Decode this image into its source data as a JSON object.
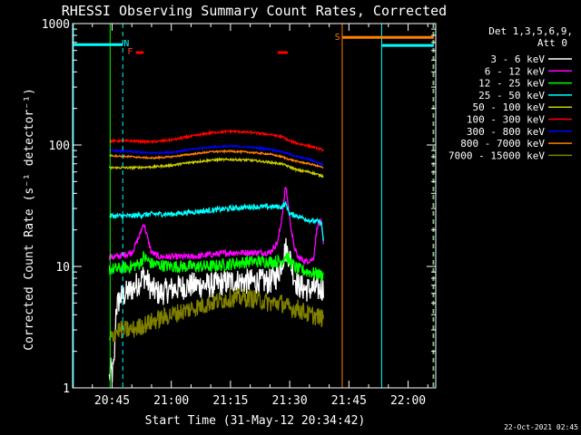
{
  "chart_data": {
    "type": "line",
    "title": "RHESSI Observing Summary Count Rates, Corrected",
    "xlabel": "Start Time (31-May-12 20:34:42)",
    "ylabel": "Corrected Count Rate (s⁻¹ detector⁻¹)",
    "y_scale": "log",
    "ylim": [
      1,
      1000
    ],
    "xlim_minutes_after_2030": [
      5.0,
      97.0
    ],
    "x_ticks": [
      {
        "label": "20:45",
        "minutes": 15
      },
      {
        "label": "21:00",
        "minutes": 30
      },
      {
        "label": "21:15",
        "minutes": 45
      },
      {
        "label": "21:30",
        "minutes": 60
      },
      {
        "label": "21:45",
        "minutes": 75
      },
      {
        "label": "22:00",
        "minutes": 90
      }
    ],
    "y_ticks": [
      {
        "label": "1",
        "value": 1
      },
      {
        "label": "10",
        "value": 10
      },
      {
        "label": "100",
        "value": 100
      },
      {
        "label": "1000",
        "value": 1000
      }
    ],
    "legend": {
      "placement": "right",
      "header": [
        "Det 1,3,5,6,9,",
        "Att 0"
      ],
      "entries": [
        {
          "label": "3 - 6 keV",
          "color": "#ffffff"
        },
        {
          "label": "6 - 12 keV",
          "color": "#ff00ff"
        },
        {
          "label": "12 - 25 keV",
          "color": "#00ff00"
        },
        {
          "label": "25 - 50 keV",
          "color": "#00ffff"
        },
        {
          "label": "50 - 100 keV",
          "color": "#cccc00"
        },
        {
          "label": "100 - 300 keV",
          "color": "#ff0000"
        },
        {
          "label": "300 - 800 keV",
          "color": "#0000ff"
        },
        {
          "label": "800 - 7000 keV",
          "color": "#ff8000"
        },
        {
          "label": "7000 - 15000 keV",
          "color": "#808000"
        }
      ]
    },
    "series": [
      {
        "name": "3 - 6 keV",
        "color": "#ffffff",
        "noise": 0.25,
        "x": [
          14.3,
          14.6,
          15.0,
          15.5,
          16.0,
          17,
          20,
          22,
          23,
          24,
          25,
          27,
          30,
          35,
          40,
          45,
          50,
          55,
          57,
          59,
          60,
          61,
          62,
          64,
          66,
          68,
          68.6
        ],
        "y": [
          1.2,
          1.4,
          1.3,
          1.5,
          4.5,
          5.5,
          6.5,
          7.5,
          8.5,
          7.5,
          6.5,
          6.0,
          6.5,
          7.0,
          7.0,
          7.5,
          7.5,
          7.5,
          8.5,
          14,
          12,
          8.5,
          7.0,
          6.5,
          6.5,
          6.5,
          6.5
        ]
      },
      {
        "name": "6 - 12 keV",
        "color": "#ff00ff",
        "noise": 0.06,
        "x": [
          14.3,
          16,
          20,
          22,
          23,
          24,
          25,
          27,
          30,
          35,
          40,
          45,
          50,
          55,
          57,
          58,
          59,
          60,
          61,
          62,
          64,
          66,
          67,
          68,
          68.6
        ],
        "y": [
          12,
          12,
          13,
          18,
          23,
          17,
          13,
          12,
          12,
          12,
          12.5,
          13,
          13,
          13,
          16,
          25,
          47,
          25,
          15,
          12,
          11,
          11.5,
          22,
          23,
          14
        ]
      },
      {
        "name": "12 - 25 keV",
        "color": "#00ff00",
        "noise": 0.12,
        "x": [
          14.3,
          16,
          20,
          22,
          23,
          25,
          30,
          35,
          40,
          45,
          50,
          55,
          58,
          59,
          60,
          62,
          65,
          68,
          68.6
        ],
        "y": [
          9.5,
          9.5,
          10,
          10.5,
          12,
          10.5,
          10,
          10,
          10,
          10.5,
          11,
          11,
          11,
          12.5,
          11,
          9.5,
          9,
          8.5,
          8.5
        ]
      },
      {
        "name": "25 - 50 keV",
        "color": "#00ffff",
        "noise": 0.05,
        "x": [
          14.3,
          20,
          25,
          30,
          35,
          40,
          45,
          50,
          55,
          58,
          59,
          60,
          62,
          65,
          68,
          68.6
        ],
        "y": [
          26,
          26,
          27,
          27,
          28,
          29,
          30,
          31,
          31,
          31,
          33,
          27,
          26,
          24,
          23,
          16
        ]
      },
      {
        "name": "50 - 100 keV",
        "color": "#cccc00",
        "noise": 0.02,
        "x": [
          14.3,
          20,
          25,
          30,
          35,
          40,
          45,
          50,
          55,
          58,
          60,
          62,
          65,
          68,
          68.6
        ],
        "y": [
          65,
          65,
          66,
          68,
          72,
          75,
          76,
          75,
          72,
          70,
          66,
          62,
          60,
          56,
          55
        ]
      },
      {
        "name": "100 - 300 keV",
        "color": "#ff0000",
        "noise": 0.02,
        "x": [
          14.3,
          20,
          25,
          30,
          35,
          40,
          45,
          50,
          55,
          58,
          60,
          62,
          65,
          68,
          68.6
        ],
        "y": [
          108,
          108,
          106,
          110,
          118,
          126,
          130,
          127,
          122,
          117,
          108,
          103,
          98,
          92,
          90
        ]
      },
      {
        "name": "300 - 800 keV",
        "color": "#0000ff",
        "noise": 0.015,
        "x": [
          14.3,
          20,
          25,
          30,
          35,
          40,
          45,
          50,
          55,
          58,
          60,
          62,
          65,
          68,
          68.6
        ],
        "y": [
          90,
          88,
          86,
          87,
          92,
          96,
          98,
          96,
          92,
          88,
          84,
          80,
          76,
          70,
          68
        ]
      },
      {
        "name": "800 - 7000 keV",
        "color": "#ff8000",
        "noise": 0.015,
        "x": [
          14.3,
          20,
          25,
          30,
          35,
          40,
          45,
          50,
          55,
          58,
          60,
          62,
          65,
          68,
          68.6
        ],
        "y": [
          82,
          80,
          78,
          80,
          84,
          88,
          89,
          87,
          84,
          80,
          76,
          73,
          70,
          66,
          64
        ]
      },
      {
        "name": "7000 - 15000 keV",
        "color": "#808000",
        "noise": 0.18,
        "x": [
          14.3,
          15.5,
          16.5,
          20,
          25,
          30,
          35,
          40,
          45,
          50,
          55,
          58,
          60,
          62,
          65,
          68,
          68.6
        ],
        "y": [
          2.4,
          2.8,
          3.0,
          3.0,
          3.5,
          4.0,
          4.5,
          5.0,
          5.5,
          5.5,
          5.0,
          5.0,
          4.5,
          4.5,
          4.0,
          3.8,
          3.5
        ]
      }
    ],
    "annotations": {
      "flags": [
        {
          "label": "N",
          "minutes": 17.7,
          "color": "#00ffff"
        },
        {
          "label": "F",
          "minutes": 20.5,
          "color": "#ff4040"
        },
        {
          "label": "S",
          "minutes": 73.5,
          "color": "#ff8000"
        }
      ],
      "flare_bars": [
        {
          "start": 21.0,
          "end": 23.0,
          "color": "#ff0000"
        },
        {
          "start": 57.0,
          "end": 59.5,
          "color": "#ff0000"
        }
      ],
      "vertical_lines": [
        {
          "minutes": 5.2,
          "color": "#00ffff",
          "style": "solid"
        },
        {
          "minutes": 14.5,
          "color": "#00ff00",
          "style": "solid"
        },
        {
          "minutes": 17.7,
          "color": "#00ffff",
          "style": "dashed"
        },
        {
          "minutes": 73.3,
          "color": "#ff8000",
          "style": "solid"
        },
        {
          "minutes": 83.3,
          "color": "#00ffff",
          "style": "solid"
        },
        {
          "minutes": 96.3,
          "color": "#ff8000",
          "style": "dashed"
        },
        {
          "minutes": 96.5,
          "color": "#00ffff",
          "style": "dashed"
        }
      ],
      "top_bars": [
        {
          "start": 5.0,
          "end": 17.7,
          "color": "#00ffff",
          "value": 670
        },
        {
          "start": 73.4,
          "end": 96.5,
          "color": "#ff8000",
          "value": 770
        },
        {
          "start": 83.4,
          "end": 96.5,
          "color": "#00ffff",
          "value": 660
        }
      ]
    },
    "timestamp": "22-Oct-2021 02:45"
  }
}
